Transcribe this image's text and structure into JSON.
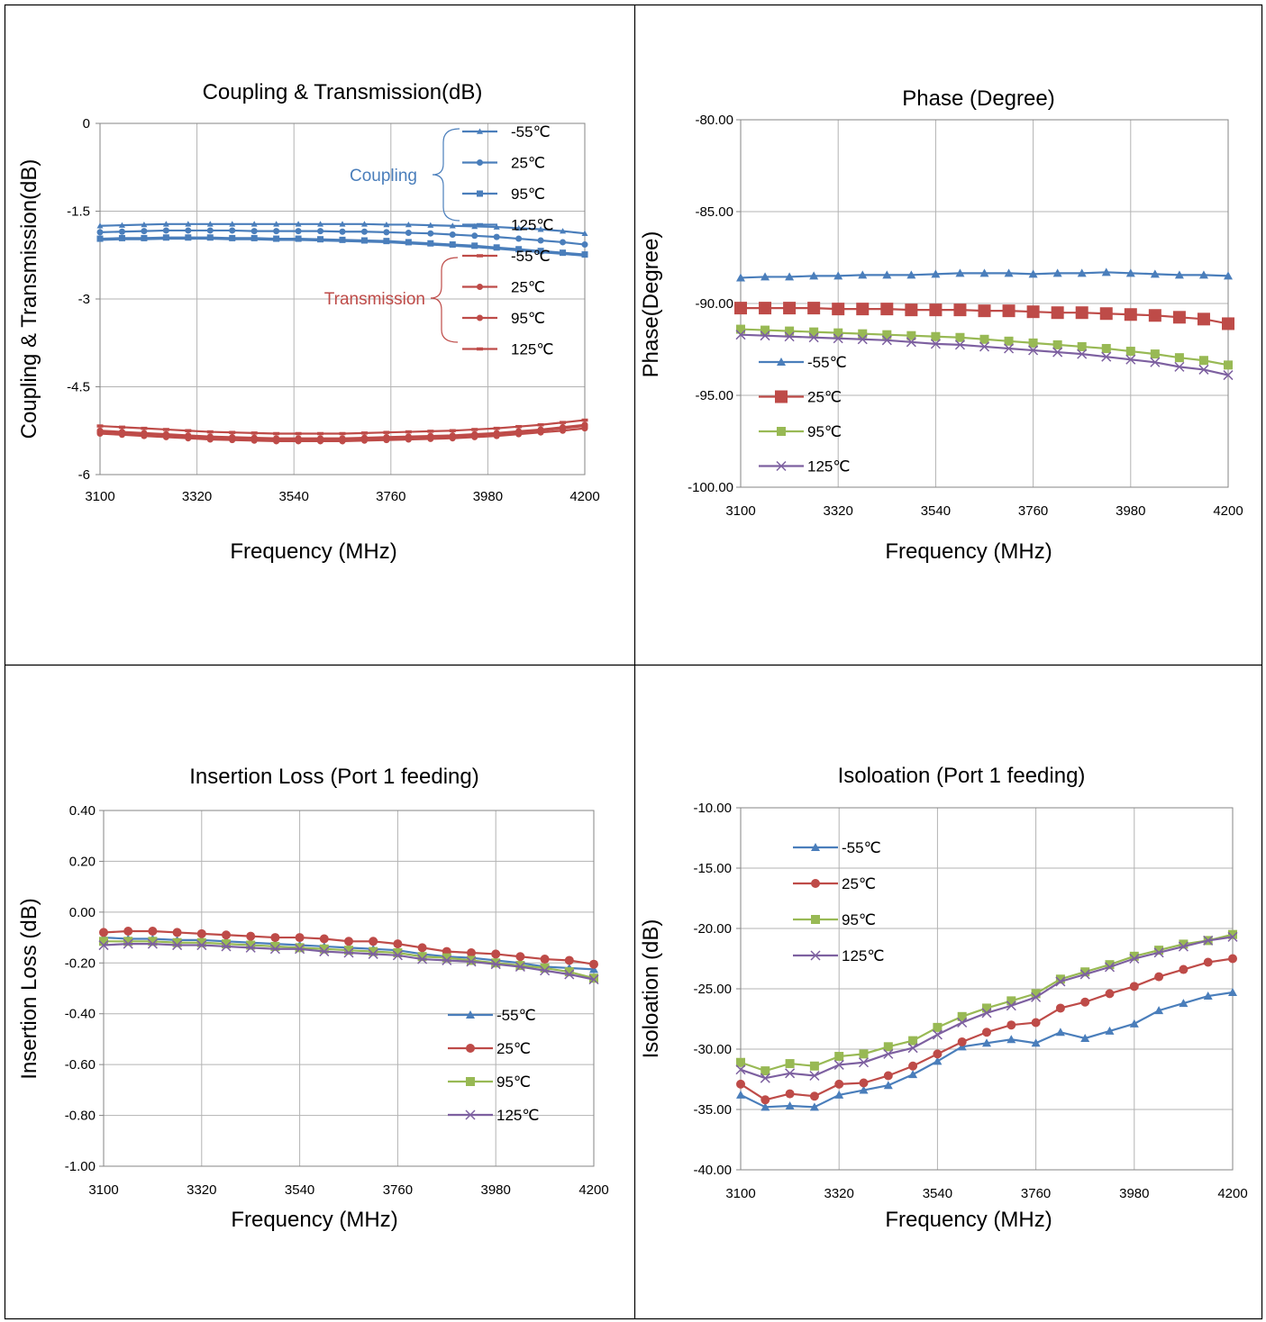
{
  "colors": {
    "blue": "#4a7ebb",
    "red": "#be4b48",
    "green": "#98b954",
    "purple": "#7d60a0",
    "grid": "#b3b3b3",
    "axis": "#868686"
  },
  "chart_data": [
    {
      "id": "coupling",
      "type": "line",
      "title": "Coupling & Transmission(dB)",
      "xlabel": "Frequency (MHz)",
      "ylabel": "Coupling & Transmission(dB)",
      "xlim": [
        3100,
        4200
      ],
      "ylim": [
        -6,
        0
      ],
      "xticks": [
        "3100",
        "3320",
        "3540",
        "3760",
        "3980",
        "4200"
      ],
      "yticks": [
        "0",
        "-1.5",
        "-3",
        "-4.5",
        "-6"
      ],
      "grid": true,
      "legend_placement": "top-right",
      "group_labels": {
        "coupling": "Coupling",
        "transmission": "Transmission"
      },
      "x": [
        3100,
        3150,
        3200,
        3250,
        3300,
        3350,
        3400,
        3450,
        3500,
        3550,
        3600,
        3650,
        3700,
        3750,
        3800,
        3850,
        3900,
        3950,
        4000,
        4050,
        4100,
        4150,
        4200
      ],
      "series": [
        {
          "name": "-55℃",
          "group": "coupling",
          "color": "#4a7ebb",
          "marker": "triangle",
          "values": [
            -1.75,
            -1.74,
            -1.73,
            -1.72,
            -1.72,
            -1.72,
            -1.72,
            -1.72,
            -1.72,
            -1.72,
            -1.72,
            -1.72,
            -1.72,
            -1.73,
            -1.73,
            -1.74,
            -1.75,
            -1.76,
            -1.77,
            -1.79,
            -1.81,
            -1.84,
            -1.88
          ]
        },
        {
          "name": "25℃",
          "group": "coupling",
          "color": "#4a7ebb",
          "marker": "circle",
          "values": [
            -1.86,
            -1.85,
            -1.84,
            -1.83,
            -1.83,
            -1.83,
            -1.83,
            -1.84,
            -1.84,
            -1.84,
            -1.84,
            -1.85,
            -1.85,
            -1.86,
            -1.87,
            -1.88,
            -1.9,
            -1.92,
            -1.94,
            -1.97,
            -2.0,
            -2.03,
            -2.07
          ]
        },
        {
          "name": "95℃",
          "group": "coupling",
          "color": "#4a7ebb",
          "marker": "square",
          "values": [
            -1.97,
            -1.96,
            -1.96,
            -1.95,
            -1.95,
            -1.95,
            -1.96,
            -1.96,
            -1.97,
            -1.97,
            -1.98,
            -1.99,
            -2.0,
            -2.01,
            -2.03,
            -2.05,
            -2.07,
            -2.09,
            -2.12,
            -2.15,
            -2.18,
            -2.21,
            -2.24
          ]
        },
        {
          "name": "125℃",
          "group": "coupling",
          "color": "#4a7ebb",
          "marker": "dash",
          "values": [
            -1.99,
            -1.98,
            -1.98,
            -1.97,
            -1.97,
            -1.97,
            -1.98,
            -1.98,
            -1.99,
            -1.99,
            -2.0,
            -2.01,
            -2.02,
            -2.03,
            -2.05,
            -2.07,
            -2.09,
            -2.11,
            -2.14,
            -2.17,
            -2.2,
            -2.23,
            -2.26
          ]
        },
        {
          "name": "-55℃",
          "group": "transmission",
          "color": "#be4b48",
          "marker": "dash",
          "values": [
            -5.17,
            -5.19,
            -5.21,
            -5.23,
            -5.25,
            -5.27,
            -5.28,
            -5.29,
            -5.3,
            -5.3,
            -5.3,
            -5.3,
            -5.29,
            -5.28,
            -5.27,
            -5.26,
            -5.25,
            -5.23,
            -5.21,
            -5.18,
            -5.15,
            -5.11,
            -5.07
          ]
        },
        {
          "name": "25℃",
          "group": "transmission",
          "color": "#be4b48",
          "marker": "circle",
          "values": [
            -5.25,
            -5.27,
            -5.29,
            -5.31,
            -5.33,
            -5.35,
            -5.36,
            -5.37,
            -5.38,
            -5.38,
            -5.38,
            -5.38,
            -5.37,
            -5.36,
            -5.35,
            -5.34,
            -5.33,
            -5.31,
            -5.29,
            -5.26,
            -5.23,
            -5.19,
            -5.15
          ]
        },
        {
          "name": "95℃",
          "group": "transmission",
          "color": "#be4b48",
          "marker": "circle",
          "values": [
            -5.3,
            -5.32,
            -5.34,
            -5.36,
            -5.38,
            -5.4,
            -5.41,
            -5.42,
            -5.43,
            -5.43,
            -5.43,
            -5.43,
            -5.42,
            -5.41,
            -5.4,
            -5.39,
            -5.38,
            -5.36,
            -5.34,
            -5.31,
            -5.28,
            -5.25,
            -5.21
          ]
        },
        {
          "name": "125℃",
          "group": "transmission",
          "color": "#be4b48",
          "marker": "dash",
          "values": [
            -5.27,
            -5.29,
            -5.31,
            -5.33,
            -5.35,
            -5.37,
            -5.38,
            -5.39,
            -5.4,
            -5.4,
            -5.4,
            -5.4,
            -5.39,
            -5.38,
            -5.37,
            -5.36,
            -5.35,
            -5.33,
            -5.31,
            -5.28,
            -5.25,
            -5.21,
            -5.17
          ]
        }
      ]
    },
    {
      "id": "phase",
      "type": "line",
      "title": "Phase (Degree)",
      "xlabel": "Frequency (MHz)",
      "ylabel": "Phase(Degree)",
      "xlim": [
        3100,
        4200
      ],
      "ylim": [
        -100,
        -80
      ],
      "xticks": [
        "3100",
        "3320",
        "3540",
        "3760",
        "3980",
        "4200"
      ],
      "yticks": [
        "-80.00",
        "-85.00",
        "-90.00",
        "-95.00",
        "-100.00"
      ],
      "grid": true,
      "legend_placement": "bottom-left",
      "x": [
        3100,
        3155,
        3210,
        3265,
        3320,
        3375,
        3430,
        3485,
        3540,
        3595,
        3650,
        3705,
        3760,
        3815,
        3870,
        3925,
        3980,
        4035,
        4090,
        4145,
        4200
      ],
      "series": [
        {
          "name": "-55℃",
          "color": "#4a7ebb",
          "marker": "triangle",
          "values": [
            -88.6,
            -88.55,
            -88.55,
            -88.5,
            -88.5,
            -88.45,
            -88.45,
            -88.45,
            -88.4,
            -88.35,
            -88.35,
            -88.35,
            -88.4,
            -88.35,
            -88.35,
            -88.3,
            -88.35,
            -88.4,
            -88.45,
            -88.45,
            -88.5
          ]
        },
        {
          "name": "25℃",
          "color": "#be4b48",
          "marker": "square",
          "values": [
            -90.25,
            -90.25,
            -90.25,
            -90.25,
            -90.3,
            -90.3,
            -90.3,
            -90.35,
            -90.35,
            -90.35,
            -90.4,
            -90.4,
            -90.45,
            -90.5,
            -90.5,
            -90.55,
            -90.6,
            -90.65,
            -90.75,
            -90.85,
            -91.1
          ]
        },
        {
          "name": "95℃",
          "color": "#98b954",
          "marker": "square",
          "values": [
            -91.4,
            -91.45,
            -91.5,
            -91.55,
            -91.6,
            -91.65,
            -91.7,
            -91.75,
            -91.8,
            -91.85,
            -91.95,
            -92.05,
            -92.15,
            -92.25,
            -92.35,
            -92.45,
            -92.6,
            -92.75,
            -92.95,
            -93.1,
            -93.35
          ]
        },
        {
          "name": "125℃",
          "color": "#7d60a0",
          "marker": "x",
          "values": [
            -91.7,
            -91.75,
            -91.8,
            -91.85,
            -91.9,
            -91.95,
            -92.0,
            -92.1,
            -92.2,
            -92.25,
            -92.35,
            -92.45,
            -92.55,
            -92.65,
            -92.75,
            -92.9,
            -93.05,
            -93.2,
            -93.45,
            -93.6,
            -93.9
          ]
        }
      ]
    },
    {
      "id": "insertion",
      "type": "line",
      "title": "Insertion Loss (Port 1 feeding)",
      "xlabel": "Frequency (MHz)",
      "ylabel": "Insertion Loss (dB)",
      "xlim": [
        3100,
        4200
      ],
      "ylim": [
        -1.0,
        0.4
      ],
      "xticks": [
        "3100",
        "3320",
        "3540",
        "3760",
        "3980",
        "4200"
      ],
      "yticks": [
        "0.40",
        "0.20",
        "0.00",
        "-0.20",
        "-0.40",
        "-0.60",
        "-0.80",
        "-1.00"
      ],
      "grid": true,
      "legend_placement": "bottom-right",
      "x": [
        3100,
        3155,
        3210,
        3265,
        3320,
        3375,
        3430,
        3485,
        3540,
        3595,
        3650,
        3705,
        3760,
        3815,
        3870,
        3925,
        3980,
        4035,
        4090,
        4145,
        4200
      ],
      "series": [
        {
          "name": "-55℃",
          "color": "#4a7ebb",
          "marker": "triangle",
          "values": [
            -0.1,
            -0.105,
            -0.105,
            -0.11,
            -0.11,
            -0.115,
            -0.12,
            -0.125,
            -0.13,
            -0.135,
            -0.14,
            -0.145,
            -0.15,
            -0.165,
            -0.175,
            -0.18,
            -0.19,
            -0.2,
            -0.215,
            -0.22,
            -0.225
          ]
        },
        {
          "name": "25℃",
          "color": "#be4b48",
          "marker": "circle",
          "values": [
            -0.08,
            -0.075,
            -0.075,
            -0.08,
            -0.085,
            -0.09,
            -0.095,
            -0.1,
            -0.1,
            -0.105,
            -0.115,
            -0.115,
            -0.125,
            -0.14,
            -0.155,
            -0.16,
            -0.165,
            -0.175,
            -0.185,
            -0.19,
            -0.205
          ]
        },
        {
          "name": "95℃",
          "color": "#98b954",
          "marker": "square",
          "values": [
            -0.115,
            -0.115,
            -0.115,
            -0.12,
            -0.12,
            -0.125,
            -0.13,
            -0.135,
            -0.14,
            -0.145,
            -0.15,
            -0.155,
            -0.16,
            -0.175,
            -0.18,
            -0.19,
            -0.2,
            -0.21,
            -0.22,
            -0.235,
            -0.26
          ]
        },
        {
          "name": "125℃",
          "color": "#7d60a0",
          "marker": "x",
          "values": [
            -0.13,
            -0.125,
            -0.125,
            -0.13,
            -0.13,
            -0.135,
            -0.14,
            -0.145,
            -0.145,
            -0.155,
            -0.16,
            -0.165,
            -0.17,
            -0.185,
            -0.19,
            -0.195,
            -0.205,
            -0.215,
            -0.23,
            -0.245,
            -0.265
          ]
        }
      ]
    },
    {
      "id": "isolation",
      "type": "line",
      "title": "Isoloation (Port 1 feeding)",
      "xlabel": "Frequency (MHz)",
      "ylabel": "Isoloation (dB)",
      "xlim": [
        3100,
        4200
      ],
      "ylim": [
        -40,
        -10
      ],
      "xticks": [
        "3100",
        "3320",
        "3540",
        "3760",
        "3980",
        "4200"
      ],
      "yticks": [
        "-10.00",
        "-15.00",
        "-20.00",
        "-25.00",
        "-30.00",
        "-35.00",
        "-40.00"
      ],
      "grid": true,
      "legend_placement": "top-left",
      "x": [
        3100,
        3155,
        3210,
        3265,
        3320,
        3375,
        3430,
        3485,
        3540,
        3595,
        3650,
        3705,
        3760,
        3815,
        3870,
        3925,
        3980,
        4035,
        4090,
        4145,
        4200
      ],
      "series": [
        {
          "name": "-55℃",
          "color": "#4a7ebb",
          "marker": "triangle",
          "values": [
            -33.8,
            -34.8,
            -34.7,
            -34.8,
            -33.8,
            -33.4,
            -33.0,
            -32.1,
            -31.0,
            -29.8,
            -29.5,
            -29.2,
            -29.5,
            -28.6,
            -29.1,
            -28.5,
            -27.9,
            -26.8,
            -26.2,
            -25.6,
            -25.3
          ]
        },
        {
          "name": "25℃",
          "color": "#be4b48",
          "marker": "circle",
          "values": [
            -32.9,
            -34.2,
            -33.7,
            -33.9,
            -32.9,
            -32.8,
            -32.2,
            -31.4,
            -30.4,
            -29.4,
            -28.6,
            -28.0,
            -27.8,
            -26.6,
            -26.1,
            -25.4,
            -24.8,
            -24.0,
            -23.4,
            -22.8,
            -22.5
          ]
        },
        {
          "name": "95℃",
          "color": "#98b954",
          "marker": "square",
          "values": [
            -31.1,
            -31.8,
            -31.2,
            -31.4,
            -30.6,
            -30.4,
            -29.8,
            -29.3,
            -28.2,
            -27.3,
            -26.6,
            -26.0,
            -25.4,
            -24.2,
            -23.6,
            -23.0,
            -22.3,
            -21.8,
            -21.3,
            -21.0,
            -20.5
          ]
        },
        {
          "name": "125℃",
          "color": "#7d60a0",
          "marker": "x",
          "values": [
            -31.7,
            -32.4,
            -32.0,
            -32.2,
            -31.3,
            -31.1,
            -30.4,
            -29.9,
            -28.8,
            -27.8,
            -27.0,
            -26.4,
            -25.7,
            -24.4,
            -23.8,
            -23.2,
            -22.5,
            -22.0,
            -21.5,
            -21.0,
            -20.7
          ]
        }
      ]
    }
  ]
}
